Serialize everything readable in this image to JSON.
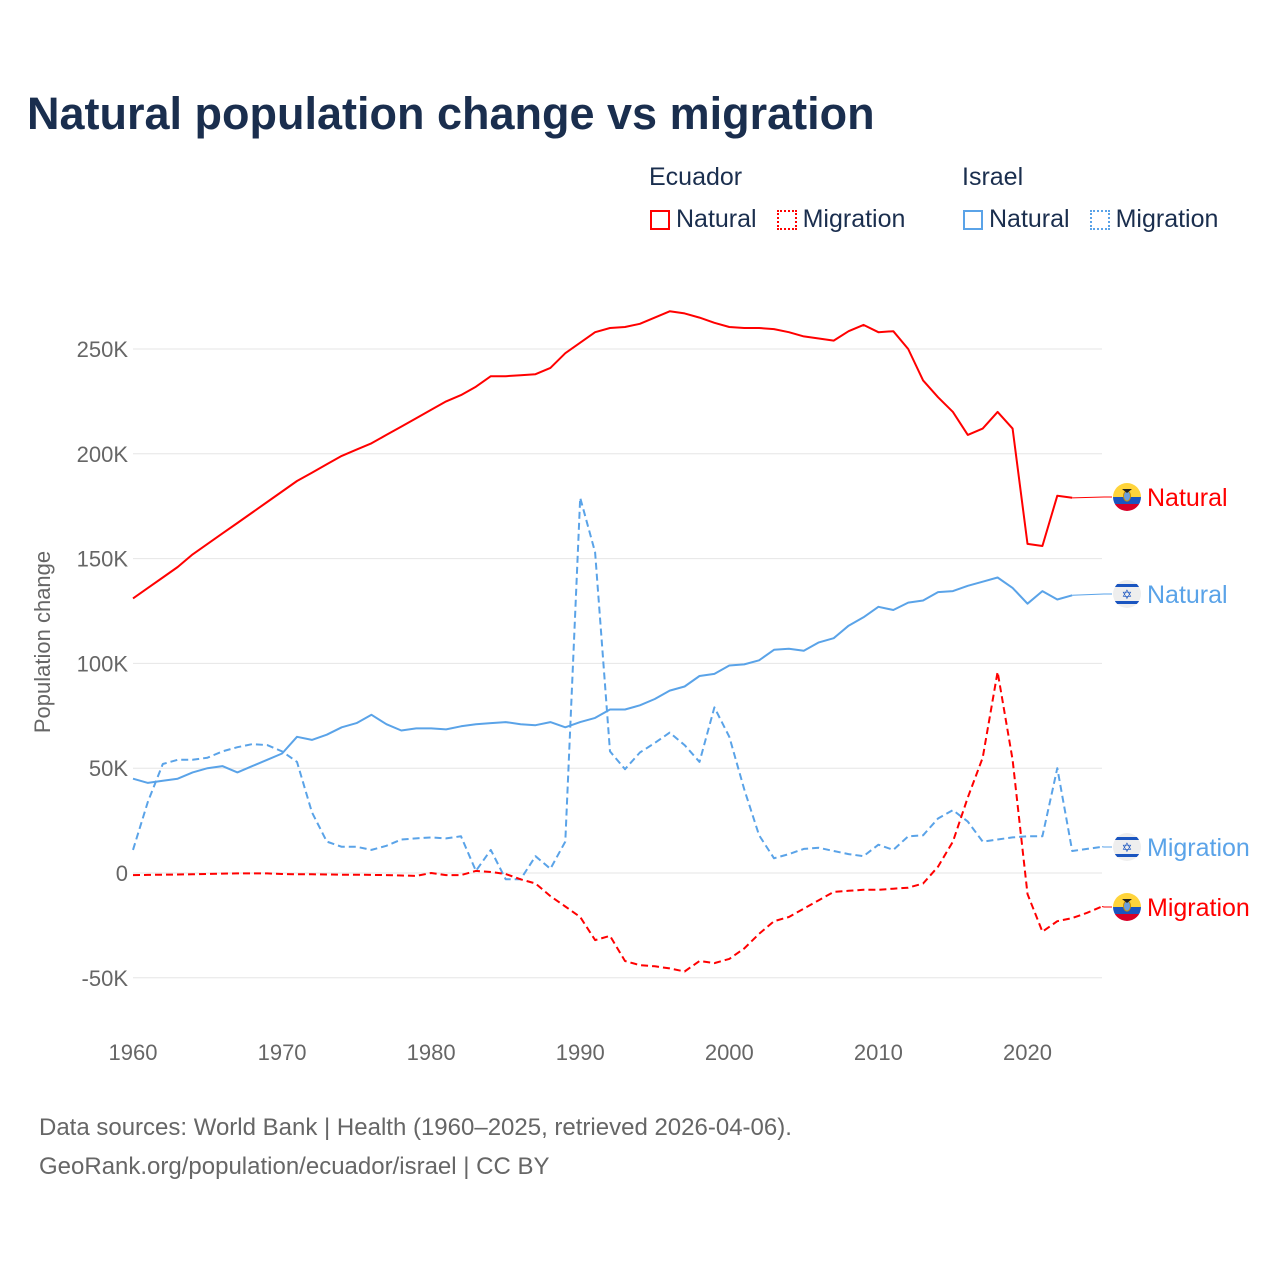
{
  "title": "Natural population change vs migration",
  "legend": {
    "groups": [
      {
        "country": "Ecuador",
        "color": "#ff0000",
        "items": [
          "Natural",
          "Migration"
        ]
      },
      {
        "country": "Israel",
        "color": "#5aa3e8",
        "items": [
          "Natural",
          "Migration"
        ]
      }
    ]
  },
  "source": {
    "line1": "Data sources: World Bank | Health (1960–2025, retrieved 2026-04-06).",
    "line2": "GeoRank.org/population/ecuador/israel | CC BY"
  },
  "chart_data": {
    "type": "line",
    "title": "Natural population change vs migration",
    "xlabel": "",
    "ylabel": "Population change",
    "xlim": [
      1960,
      2025
    ],
    "ylim": [
      -75000,
      275000
    ],
    "x_ticks": [
      1960,
      1970,
      1980,
      1990,
      2000,
      2010,
      2020
    ],
    "x_tick_labels": [
      "1960",
      "1970",
      "1980",
      "1990",
      "2000",
      "2010",
      "2020"
    ],
    "y_ticks": [
      -50000,
      0,
      50000,
      100000,
      150000,
      200000,
      250000
    ],
    "y_tick_labels": [
      "-50K",
      "0",
      "50K",
      "100K",
      "150K",
      "200K",
      "250K"
    ],
    "grid": true,
    "legend_position": "top-right",
    "series": [
      {
        "name": "Ecuador Natural",
        "label": "Natural",
        "country": "Ecuador",
        "flag": "ecuador-flag",
        "color": "#ff0000",
        "dash": "solid",
        "start_year": 1960,
        "values": [
          131000,
          136000,
          141000,
          146000,
          152000,
          157000,
          162000,
          167000,
          172000,
          177000,
          182000,
          187000,
          191000,
          195000,
          199000,
          202000,
          205000,
          209000,
          213000,
          217000,
          221000,
          225000,
          228000,
          232000,
          237000,
          237000,
          237500,
          238000,
          241000,
          248000,
          253000,
          258000,
          260000,
          260500,
          262000,
          265000,
          268000,
          267000,
          265000,
          262500,
          260500,
          260000,
          260000,
          259500,
          258000,
          256000,
          255000,
          254000,
          258500,
          261500,
          258000,
          258500,
          250000,
          235000,
          227000,
          220000,
          209000,
          212000,
          220000,
          212000,
          157000,
          156000,
          180000,
          179000
        ]
      },
      {
        "name": "Israel Natural",
        "label": "Natural",
        "country": "Israel",
        "flag": "israel-flag",
        "color": "#5aa3e8",
        "dash": "solid",
        "start_year": 1960,
        "values": [
          45000,
          43000,
          44000,
          45000,
          48000,
          50000,
          51000,
          48000,
          51000,
          54000,
          57000,
          65000,
          63500,
          66000,
          69500,
          71500,
          75500,
          71000,
          68000,
          69000,
          69000,
          68500,
          70000,
          71000,
          71500,
          72000,
          71000,
          70500,
          72000,
          69500,
          72000,
          74000,
          78000,
          78000,
          80000,
          83000,
          87000,
          89000,
          94000,
          95000,
          99000,
          99500,
          101500,
          106500,
          107000,
          106000,
          110000,
          112000,
          118000,
          122000,
          127000,
          125500,
          129000,
          130000,
          134000,
          134500,
          137000,
          139000,
          141000,
          136000,
          128500,
          134500,
          130500,
          132500
        ]
      },
      {
        "name": "Israel Migration",
        "label": "Migration",
        "country": "Israel",
        "flag": "israel-flag",
        "color": "#5aa3e8",
        "dash": "dashed",
        "start_year": 1960,
        "values": [
          11000,
          34000,
          52000,
          54000,
          54000,
          55000,
          58000,
          60000,
          61500,
          61000,
          58000,
          53000,
          29000,
          15000,
          12500,
          12500,
          11000,
          13000,
          16000,
          16500,
          17000,
          16500,
          17500,
          1000,
          11000,
          -3000,
          -3000,
          8000,
          2000,
          15000,
          179000,
          153000,
          58000,
          49500,
          57500,
          62000,
          67000,
          61000,
          53000,
          79000,
          65000,
          40000,
          18000,
          7000,
          9000,
          11500,
          12000,
          10500,
          9000,
          8000,
          13500,
          11000,
          17500,
          18000,
          26000,
          30000,
          24500,
          15000,
          16000,
          17000,
          17500,
          17500,
          50000,
          10500,
          11500,
          12500
        ]
      },
      {
        "name": "Ecuador Migration",
        "label": "Migration",
        "country": "Ecuador",
        "flag": "ecuador-flag",
        "color": "#ff0000",
        "dash": "dashed",
        "start_year": 1960,
        "values": [
          -1000,
          -900,
          -800,
          -700,
          -600,
          -500,
          -300,
          -200,
          -200,
          -200,
          -500,
          -600,
          -600,
          -700,
          -800,
          -800,
          -900,
          -1000,
          -1200,
          -1400,
          0,
          -1000,
          -1000,
          1000,
          500,
          -500,
          -3000,
          -5000,
          -11000,
          -16000,
          -21000,
          -32000,
          -30000,
          -42000,
          -44000,
          -44500,
          -45500,
          -47000,
          -42000,
          -43000,
          -41000,
          -36000,
          -29000,
          -23000,
          -21000,
          -17000,
          -13000,
          -9000,
          -8500,
          -8000,
          -8000,
          -7500,
          -7000,
          -5000,
          3000,
          15000,
          36000,
          55000,
          96000,
          54000,
          -10000,
          -28000,
          -23000,
          -21500,
          -19000,
          -16000
        ]
      }
    ]
  }
}
